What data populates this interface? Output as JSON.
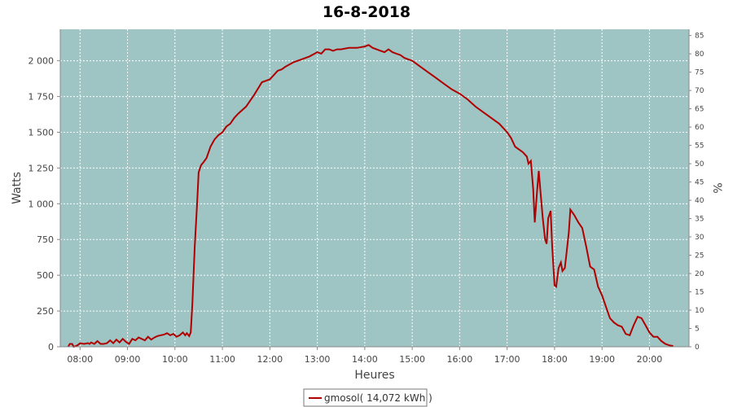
{
  "chart_data": {
    "type": "line",
    "title": "16-8-2018",
    "xlabel": "Heures",
    "ylabel": "Watts",
    "y2label": "%",
    "x_ticks": [
      "08:00",
      "09:00",
      "10:00",
      "11:00",
      "12:00",
      "13:00",
      "14:00",
      "15:00",
      "16:00",
      "17:00",
      "18:00",
      "19:00",
      "20:00"
    ],
    "y_ticks": [
      "0",
      "250",
      "500",
      "750",
      "1 000",
      "1 250",
      "1 500",
      "1 750",
      "2 000"
    ],
    "y2_ticks": [
      "0",
      "5",
      "10",
      "15",
      "20",
      "25",
      "30",
      "35",
      "40",
      "45",
      "50",
      "55",
      "60",
      "65",
      "70",
      "75",
      "80",
      "85"
    ],
    "xlim": [
      "07:35",
      "20:50"
    ],
    "ylim": [
      0,
      2220
    ],
    "y2lim": [
      0,
      86.7
    ],
    "grid": true,
    "plot_background": "#9fc4c4",
    "legend_position": "bottom-center",
    "series": [
      {
        "name": "gmosol( 14,072 kWh )",
        "color": "#b00000",
        "x": [
          "07:45",
          "07:47",
          "07:50",
          "07:52",
          "07:55",
          "07:58",
          "08:00",
          "08:05",
          "08:10",
          "08:12",
          "08:14",
          "08:18",
          "08:22",
          "08:26",
          "08:30",
          "08:34",
          "08:38",
          "08:42",
          "08:46",
          "08:50",
          "08:54",
          "08:58",
          "09:02",
          "09:06",
          "09:10",
          "09:14",
          "09:18",
          "09:22",
          "09:26",
          "09:30",
          "09:34",
          "09:38",
          "09:42",
          "09:46",
          "09:50",
          "09:54",
          "09:58",
          "10:02",
          "10:06",
          "10:10",
          "10:13",
          "10:15",
          "10:18",
          "10:20",
          "10:22",
          "10:25",
          "10:28",
          "10:30",
          "10:33",
          "10:36",
          "10:40",
          "10:45",
          "10:50",
          "10:55",
          "11:00",
          "11:05",
          "11:10",
          "11:15",
          "11:20",
          "11:30",
          "11:40",
          "11:50",
          "12:00",
          "12:05",
          "12:10",
          "12:15",
          "12:20",
          "12:30",
          "12:40",
          "12:50",
          "13:00",
          "13:05",
          "13:10",
          "13:15",
          "13:20",
          "13:25",
          "13:30",
          "13:40",
          "13:50",
          "14:00",
          "14:05",
          "14:10",
          "14:15",
          "14:20",
          "14:25",
          "14:30",
          "14:35",
          "14:40",
          "14:45",
          "14:50",
          "14:55",
          "15:00",
          "15:10",
          "15:20",
          "15:30",
          "15:40",
          "15:50",
          "16:00",
          "16:10",
          "16:20",
          "16:30",
          "16:40",
          "16:50",
          "17:00",
          "17:05",
          "17:10",
          "17:15",
          "17:20",
          "17:25",
          "17:27",
          "17:30",
          "17:33",
          "17:35",
          "17:38",
          "17:40",
          "17:42",
          "17:45",
          "17:48",
          "17:50",
          "17:52",
          "17:55",
          "17:57",
          "18:00",
          "18:02",
          "18:05",
          "18:08",
          "18:10",
          "18:13",
          "18:15",
          "18:18",
          "18:20",
          "18:25",
          "18:30",
          "18:35",
          "18:40",
          "18:45",
          "18:50",
          "18:55",
          "19:00",
          "19:05",
          "19:10",
          "19:15",
          "19:20",
          "19:25",
          "19:30",
          "19:35",
          "19:40",
          "19:45",
          "19:50",
          "19:55",
          "20:00",
          "20:05",
          "20:10",
          "20:15",
          "20:20",
          "20:25",
          "20:30"
        ],
        "y": [
          0,
          20,
          20,
          0,
          5,
          15,
          25,
          20,
          25,
          20,
          30,
          20,
          40,
          20,
          20,
          25,
          45,
          25,
          50,
          30,
          55,
          35,
          20,
          55,
          45,
          65,
          55,
          45,
          70,
          50,
          65,
          75,
          80,
          85,
          95,
          80,
          90,
          70,
          80,
          100,
          80,
          95,
          75,
          100,
          300,
          700,
          1000,
          1220,
          1270,
          1290,
          1320,
          1400,
          1450,
          1480,
          1500,
          1540,
          1560,
          1600,
          1630,
          1680,
          1760,
          1850,
          1870,
          1900,
          1930,
          1940,
          1960,
          1990,
          2010,
          2030,
          2060,
          2050,
          2080,
          2080,
          2070,
          2080,
          2080,
          2090,
          2090,
          2100,
          2110,
          2090,
          2080,
          2070,
          2060,
          2080,
          2060,
          2050,
          2040,
          2020,
          2010,
          2000,
          1960,
          1920,
          1880,
          1840,
          1800,
          1770,
          1730,
          1680,
          1640,
          1600,
          1560,
          1500,
          1460,
          1400,
          1380,
          1360,
          1330,
          1280,
          1300,
          1100,
          870,
          1100,
          1230,
          1100,
          900,
          750,
          720,
          900,
          950,
          700,
          430,
          420,
          550,
          590,
          530,
          550,
          650,
          800,
          960,
          920,
          870,
          830,
          700,
          560,
          540,
          420,
          360,
          280,
          200,
          170,
          150,
          140,
          90,
          80,
          150,
          210,
          200,
          150,
          100,
          70,
          70,
          40,
          20,
          10,
          5
        ]
      }
    ]
  }
}
